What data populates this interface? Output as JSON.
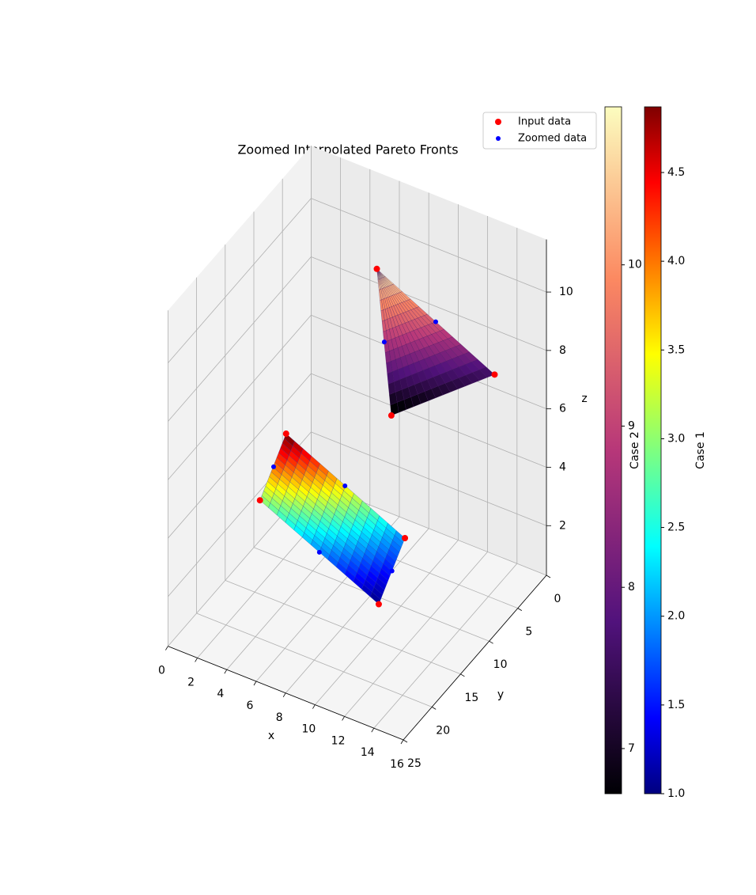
{
  "chart_data": {
    "type": "surface3d",
    "title": "Zoomed Interpolated Pareto Fronts",
    "xlabel": "x",
    "ylabel": "y",
    "zlabel": "z",
    "xlim": [
      0,
      16
    ],
    "ylim": [
      0,
      25
    ],
    "zlim": [
      0.3,
      11.8
    ],
    "xticks": [
      0,
      2,
      4,
      6,
      8,
      10,
      12,
      14,
      16
    ],
    "yticks": [
      0,
      5,
      10,
      15,
      20,
      25
    ],
    "zticks": [
      2,
      4,
      6,
      8,
      10
    ],
    "grid": true,
    "legend": "upper right",
    "series": [
      {
        "name": "Input data",
        "color": "#ff0000",
        "x": [
          1.7,
          9.7,
          9.4,
          2.66,
          7.7,
          13.8,
          9.1
        ],
        "y": [
          13.3,
          13.1,
          7.76,
          11.2,
          8.3,
          3.4,
          9.36
        ],
        "z": [
          3,
          1,
          2,
          5,
          11,
          7.5,
          6.5
        ]
      },
      {
        "name": "Zoomed data",
        "color": "#0000ff",
        "x": [
          5.7,
          9.55,
          6.0,
          2.2,
          10.75,
          8.4
        ],
        "y": [
          13.2,
          10.4,
          9.5,
          12.2,
          5.85,
          8.8
        ],
        "z": [
          2,
          1.5,
          3.5,
          4,
          9.25,
          8.75
        ]
      }
    ],
    "surfaces": [
      {
        "label": "Case 1",
        "cmap": "jet",
        "clim": [
          1.0,
          4.87
        ],
        "ticks": [
          {
            "value": 1,
            "label": "1.0"
          },
          {
            "value": 1.5,
            "label": "1.5"
          },
          {
            "value": 2,
            "label": "2.0"
          },
          {
            "value": 2.5,
            "label": "2.5"
          },
          {
            "value": 3,
            "label": "3.0"
          },
          {
            "value": 3.5,
            "label": "3.5"
          },
          {
            "value": 4,
            "label": "4.0"
          },
          {
            "value": 4.5,
            "label": "4.5"
          }
        ],
        "x": [
          1.7,
          9.7,
          9.4,
          2.66
        ],
        "y": [
          13.3,
          13.1,
          7.76,
          11.2
        ],
        "z": [
          3,
          1,
          2,
          5
        ]
      },
      {
        "label": "Case 2",
        "cmap": "magma",
        "clim": [
          6.72,
          10.98
        ],
        "ticks": [
          7,
          8,
          9,
          10
        ],
        "x": [
          9.1,
          13.8,
          7.7
        ],
        "y": [
          9.36,
          3.4,
          8.3
        ],
        "z": [
          6.5,
          7.5,
          11
        ]
      }
    ]
  }
}
